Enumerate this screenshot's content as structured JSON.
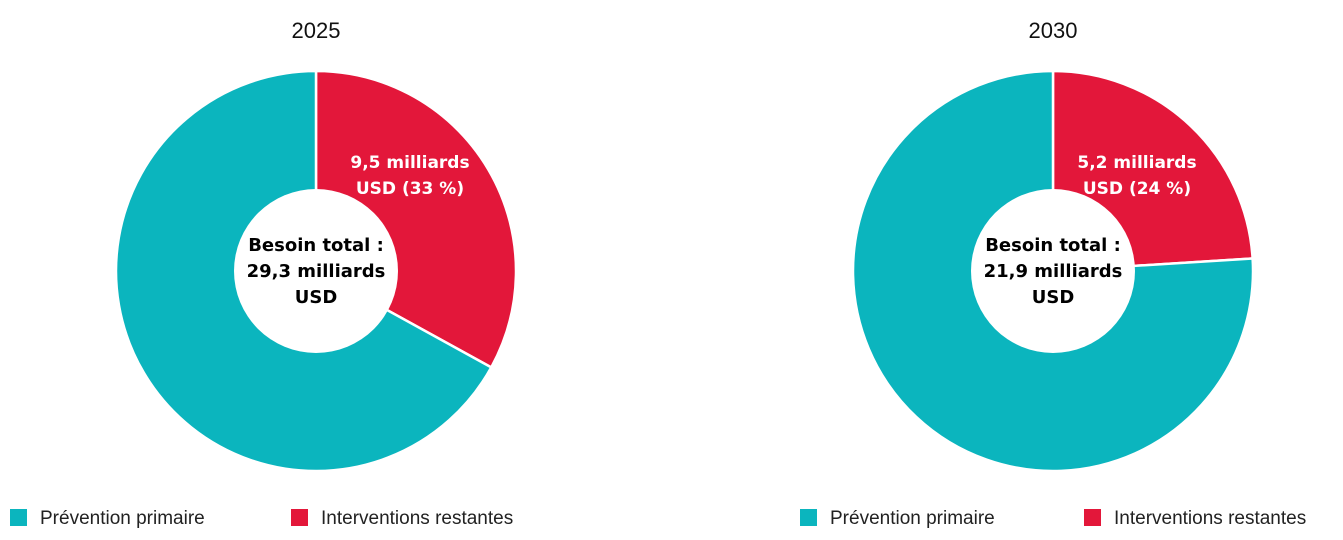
{
  "chart_data": [
    {
      "type": "pie",
      "title": "2025",
      "categories": [
        "Prévention primaire",
        "Interventions restantes"
      ],
      "values": [
        67,
        33
      ],
      "slice_labels": [
        "",
        "9,5 milliards\nUSD (33 %)"
      ],
      "center_label": [
        "Besoin total :",
        "29,3 milliards",
        "USD"
      ],
      "colors": [
        "#0bb5be",
        "#e3173a"
      ],
      "legend": "bottom"
    },
    {
      "type": "pie",
      "title": "2030",
      "categories": [
        "Prévention primaire",
        "Interventions restantes"
      ],
      "values": [
        76,
        24
      ],
      "slice_labels": [
        "",
        "5,2 milliards\nUSD (24 %)"
      ],
      "center_label": [
        "Besoin total :",
        "21,9 milliards",
        "USD"
      ],
      "colors": [
        "#0bb5be",
        "#e3173a"
      ],
      "legend": "bottom"
    }
  ]
}
